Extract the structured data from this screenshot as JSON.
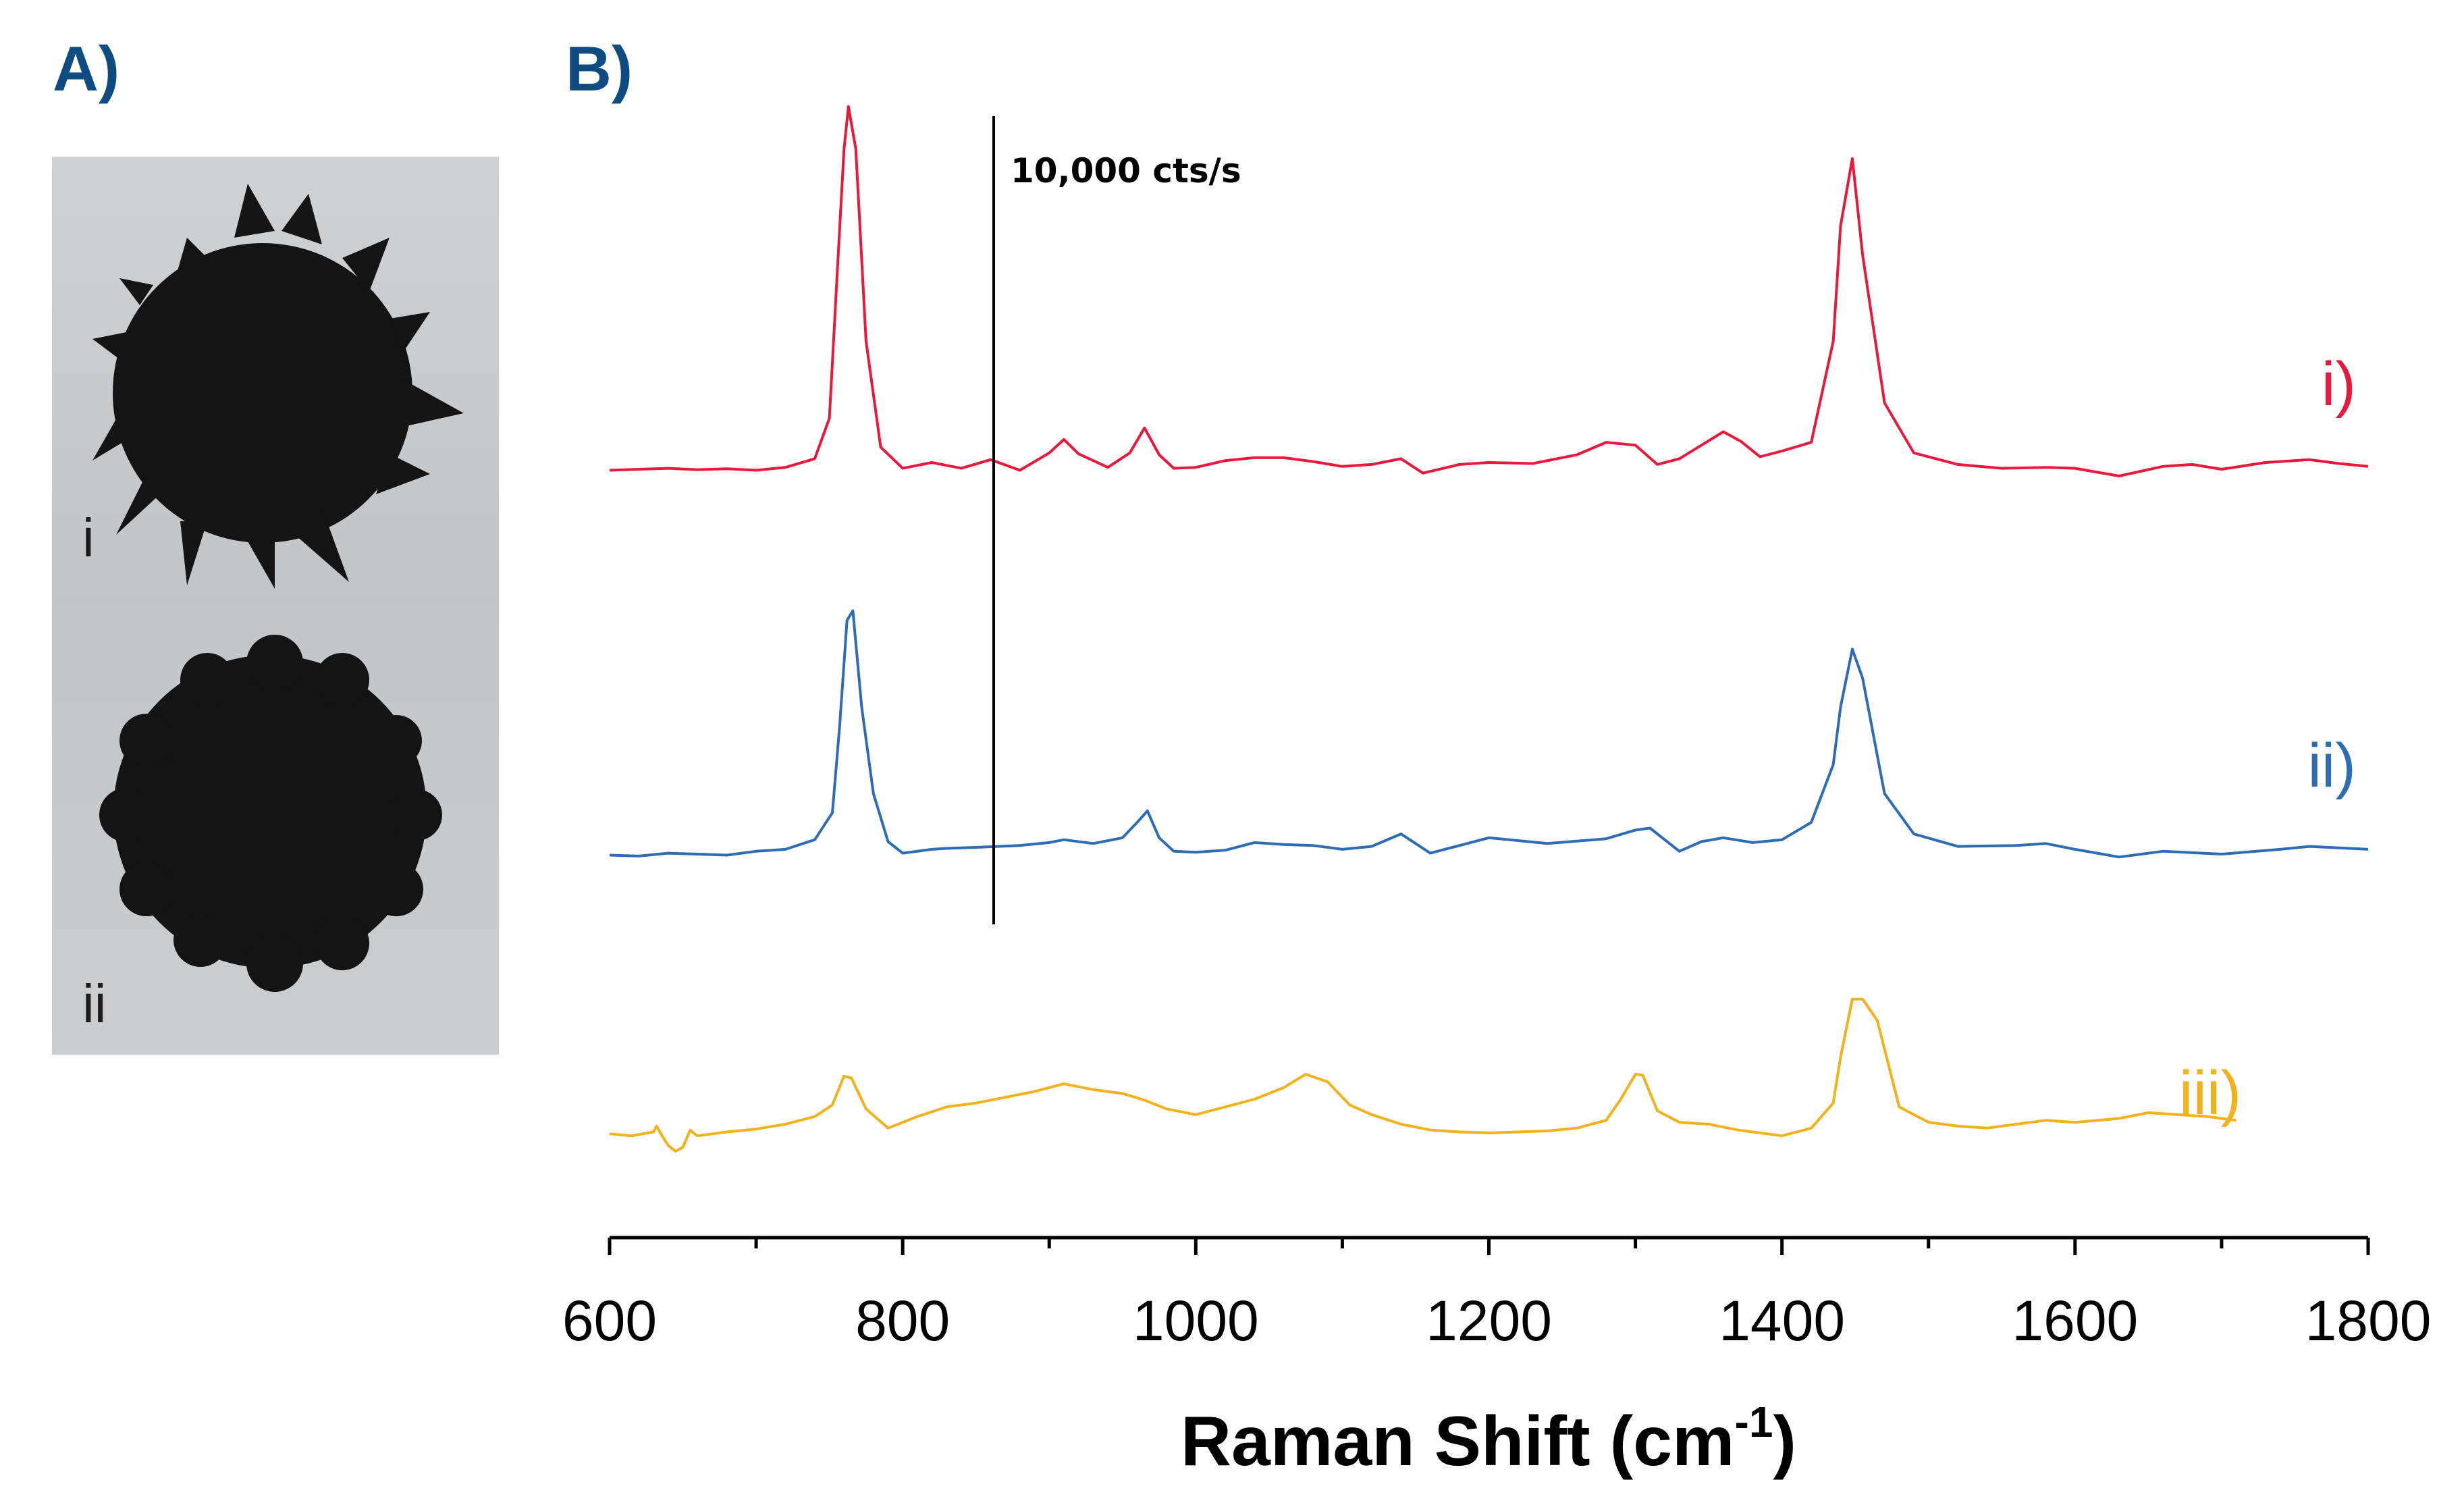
{
  "panels": {
    "a_label": "A)",
    "b_label": "B)"
  },
  "tem": {
    "top_label": "i",
    "bottom_label": "ii"
  },
  "chart_data": {
    "type": "line",
    "title": "",
    "xlabel": "Raman Shift (cm",
    "xlabel_sup": "-1",
    "xlabel_close": ")",
    "ylabel": "",
    "xlim": [
      600,
      1800
    ],
    "xticks": [
      600,
      800,
      1000,
      1200,
      1400,
      1600,
      1800
    ],
    "scale_bar_label": "10,000 cts/s",
    "scale_bar_counts": 10000,
    "series": [
      {
        "name": "i)",
        "color": "#e8193c",
        "x": [
          600,
          620,
          640,
          660,
          680,
          700,
          720,
          740,
          750,
          755,
          760,
          763,
          768,
          775,
          785,
          800,
          820,
          840,
          860,
          880,
          900,
          910,
          920,
          940,
          955,
          965,
          975,
          985,
          1000,
          1020,
          1040,
          1060,
          1080,
          1100,
          1120,
          1140,
          1155,
          1180,
          1200,
          1230,
          1260,
          1280,
          1300,
          1315,
          1330,
          1345,
          1360,
          1372,
          1385,
          1400,
          1420,
          1435,
          1440,
          1448,
          1455,
          1470,
          1490,
          1520,
          1550,
          1580,
          1600,
          1630,
          1660,
          1680,
          1700,
          1730,
          1760,
          1780,
          1800
        ],
        "y": [
          30,
          35,
          40,
          33,
          38,
          30,
          45,
          90,
          300,
          1010,
          1700,
          1920,
          1700,
          700,
          150,
          40,
          70,
          40,
          85,
          30,
          120,
          190,
          115,
          45,
          120,
          250,
          110,
          40,
          45,
          80,
          95,
          95,
          75,
          50,
          60,
          90,
          15,
          60,
          70,
          65,
          110,
          175,
          160,
          60,
          90,
          160,
          230,
          180,
          100,
          130,
          175,
          700,
          1300,
          1650,
          1150,
          380,
          120,
          60,
          40,
          45,
          40,
          0,
          50,
          60,
          35,
          70,
          85,
          65,
          50
        ]
      },
      {
        "name": "ii)",
        "color": "#2e6db4",
        "x": [
          600,
          620,
          640,
          660,
          680,
          700,
          720,
          740,
          752,
          757,
          762,
          766,
          772,
          780,
          790,
          800,
          820,
          830,
          850,
          880,
          900,
          910,
          930,
          950,
          960,
          967,
          975,
          985,
          1000,
          1020,
          1040,
          1060,
          1080,
          1100,
          1120,
          1140,
          1160,
          1200,
          1240,
          1280,
          1300,
          1310,
          1330,
          1345,
          1360,
          1380,
          1400,
          1420,
          1435,
          1440,
          1448,
          1455,
          1470,
          1490,
          1520,
          1560,
          1580,
          1600,
          1630,
          1660,
          1700,
          1740,
          1760,
          1800
        ],
        "y": [
          30,
          25,
          40,
          35,
          30,
          50,
          60,
          110,
          250,
          700,
          1250,
          1300,
          800,
          350,
          100,
          40,
          60,
          65,
          70,
          80,
          95,
          110,
          90,
          120,
          200,
          260,
          120,
          50,
          45,
          55,
          95,
          85,
          80,
          60,
          75,
          140,
          40,
          120,
          90,
          115,
          160,
          170,
          50,
          100,
          120,
          95,
          110,
          200,
          500,
          800,
          1100,
          950,
          350,
          140,
          75,
          80,
          90,
          60,
          20,
          50,
          35,
          60,
          75,
          60
        ]
      },
      {
        "name": "iii)",
        "color": "#f2b21c",
        "x": [
          600,
          615,
          630,
          632,
          635,
          640,
          645,
          650,
          655,
          657,
          660,
          680,
          700,
          720,
          740,
          752,
          760,
          765,
          775,
          790,
          810,
          830,
          850,
          870,
          890,
          910,
          930,
          950,
          965,
          980,
          1000,
          1020,
          1040,
          1060,
          1075,
          1090,
          1105,
          1120,
          1140,
          1160,
          1180,
          1200,
          1220,
          1240,
          1260,
          1280,
          1290,
          1300,
          1305,
          1315,
          1330,
          1350,
          1370,
          1390,
          1400,
          1420,
          1435,
          1440,
          1448,
          1455,
          1465,
          1480,
          1500,
          1520,
          1540,
          1560,
          1580,
          1600,
          1630,
          1650,
          1670,
          1690,
          1710
        ],
        "y": [
          20,
          10,
          30,
          60,
          20,
          -40,
          -70,
          -50,
          40,
          25,
          10,
          30,
          45,
          70,
          110,
          170,
          320,
          310,
          150,
          50,
          110,
          160,
          180,
          210,
          240,
          280,
          250,
          230,
          195,
          150,
          120,
          160,
          200,
          260,
          330,
          290,
          170,
          120,
          70,
          40,
          30,
          25,
          30,
          35,
          50,
          90,
          200,
          330,
          325,
          140,
          80,
          70,
          40,
          20,
          10,
          50,
          180,
          420,
          720,
          720,
          610,
          160,
          80,
          60,
          50,
          70,
          90,
          80,
          100,
          130,
          120,
          110,
          90
        ]
      }
    ]
  }
}
